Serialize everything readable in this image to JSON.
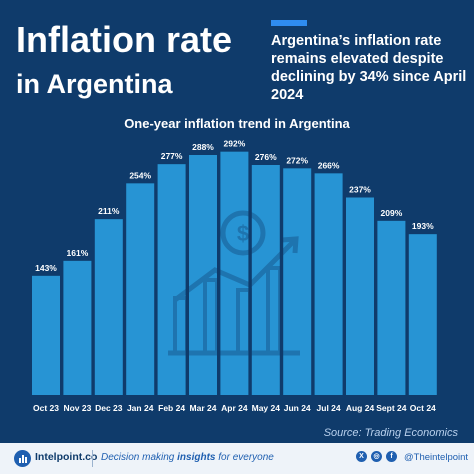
{
  "header": {
    "title_line1": "Inflation rate",
    "title_line2": "in Argentina",
    "subtitle": "Argentina’s inflation rate remains elevated despite declining by 34% since April 2024"
  },
  "chart_data": {
    "type": "bar",
    "title": "One-year inflation trend in Argentina",
    "categories": [
      "Oct 23",
      "Nov 23",
      "Dec 23",
      "Jan 24",
      "Feb 24",
      "Mar 24",
      "Apr 24",
      "May 24",
      "Jun 24",
      "Jul 24",
      "Aug 24",
      "Sept 24",
      "Oct 24"
    ],
    "values": [
      143,
      161,
      211,
      254,
      277,
      288,
      292,
      276,
      272,
      266,
      237,
      209,
      193
    ],
    "value_labels": [
      "143%",
      "161%",
      "211%",
      "254%",
      "277%",
      "288%",
      "292%",
      "276%",
      "272%",
      "266%",
      "237%",
      "209%",
      "193%"
    ],
    "unit": "%",
    "ylim": [
      0,
      300
    ],
    "grid": false,
    "bar_color": "#2a9fe0"
  },
  "source": "Source: Trading Economics",
  "footer": {
    "brand": "Intelpoint.co",
    "tagline_before": "Decision making ",
    "tagline_bold": "insights",
    "tagline_after": " for everyone",
    "handle": "@Theintelpoint",
    "social_icons": [
      "x-icon",
      "instagram-icon",
      "facebook-icon"
    ]
  },
  "colors": {
    "background": "#0f3b6b",
    "accent": "#2f8cf0",
    "footer_bg": "#eef3f9"
  }
}
